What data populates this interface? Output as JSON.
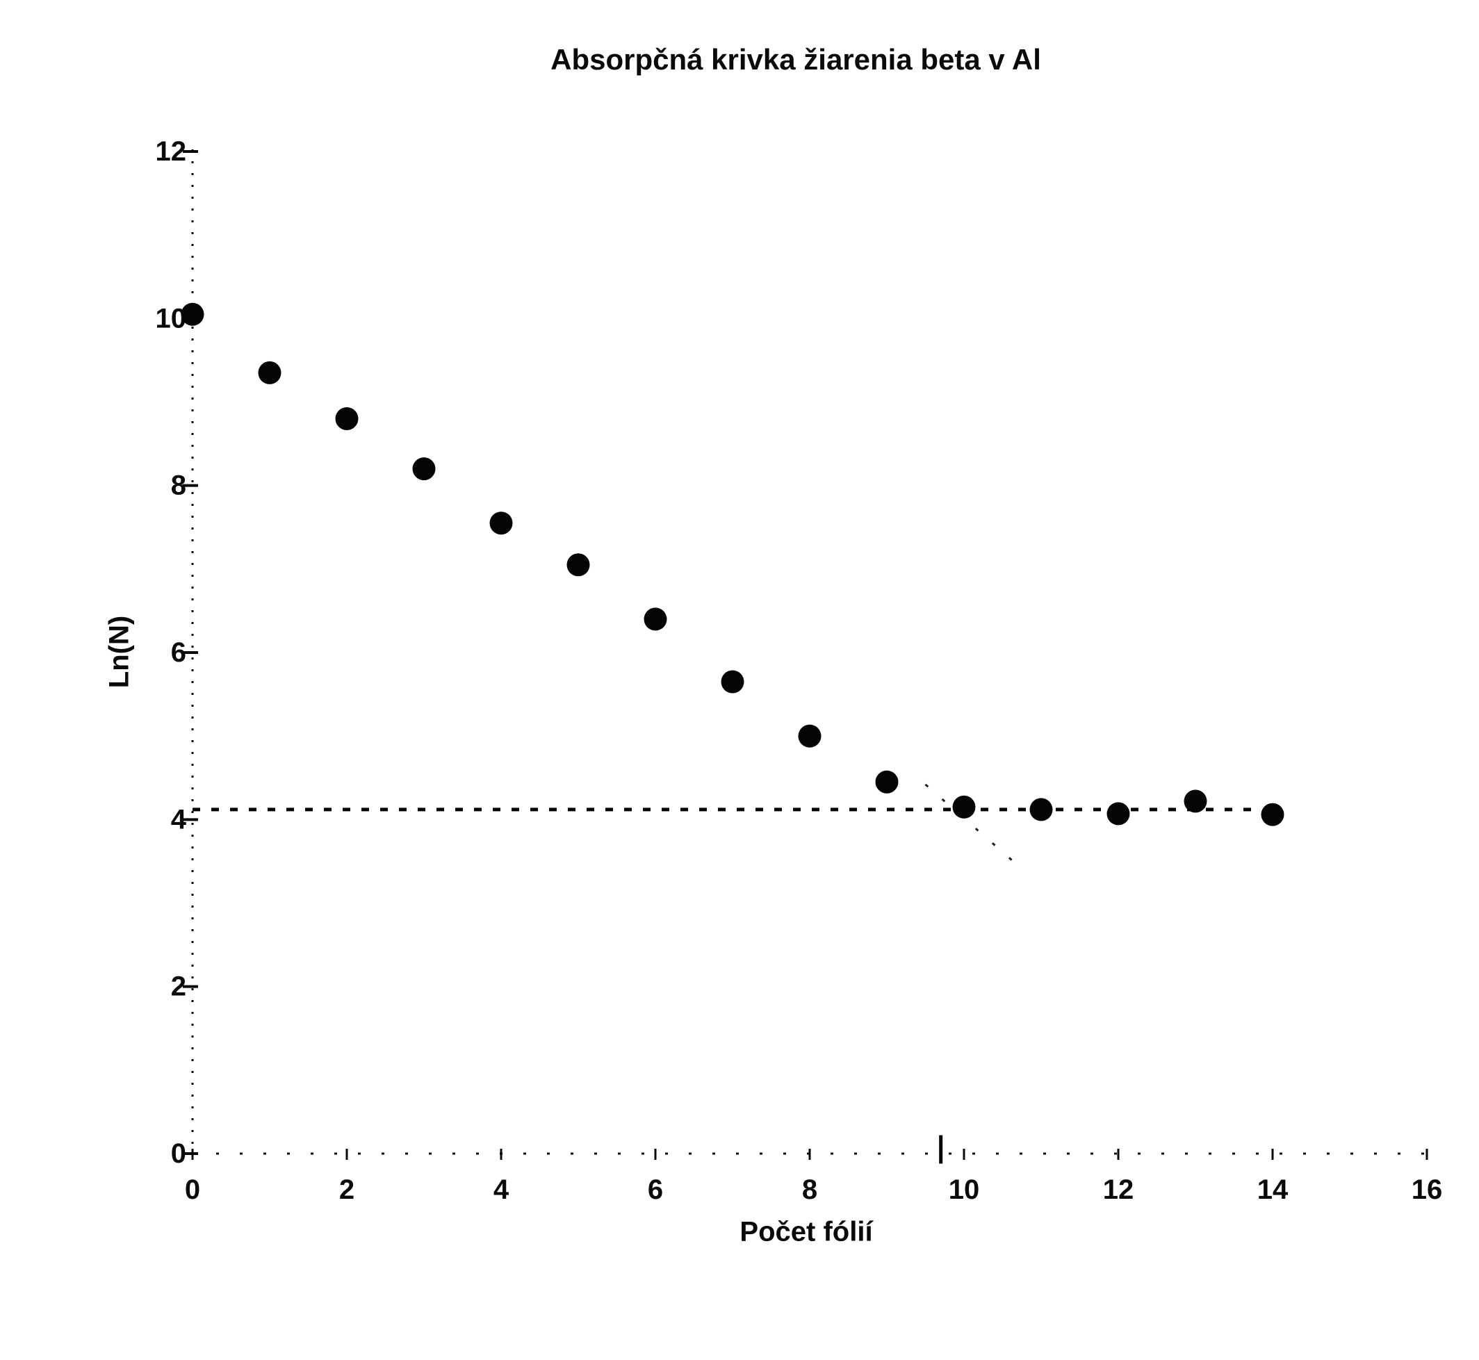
{
  "chart_data": {
    "type": "scatter",
    "title": "Absorpčná krivka žiarenia beta v Al",
    "xlabel": "Počet fólií",
    "ylabel": "Ln(N)",
    "xlim": [
      0,
      16
    ],
    "ylim": [
      0,
      12
    ],
    "x_ticks": [
      0,
      2,
      4,
      6,
      8,
      10,
      12,
      14,
      16
    ],
    "y_ticks": [
      0,
      2,
      4,
      6,
      8,
      10,
      12
    ],
    "grid": false,
    "legend": false,
    "marker": {
      "shape": "circle",
      "color": "#050505",
      "radius_px": 16.5
    },
    "x": [
      0,
      1,
      2,
      3,
      4,
      5,
      6,
      7,
      8,
      9,
      10,
      11,
      12,
      13,
      14
    ],
    "y": [
      10.05,
      9.35,
      8.8,
      8.2,
      7.55,
      7.05,
      6.4,
      5.65,
      5.0,
      4.45,
      4.15,
      4.12,
      4.07,
      4.22,
      4.06
    ],
    "background_level_line": {
      "y": 4.12,
      "x_start": 0,
      "x_end": 13.8,
      "style": "dashed",
      "color": "#050505"
    },
    "extrapolation_line": {
      "x1": 9.5,
      "y1": 4.42,
      "x2": 10.7,
      "y2": 3.45,
      "style": "sparse-dashed",
      "color": "#222222"
    },
    "range_marker": {
      "x": 9.7,
      "y_top": 0.22,
      "y_bottom": -0.12,
      "color": "#050505"
    }
  },
  "colors": {
    "background": "#ffffff",
    "foreground": "#0a0a0a"
  }
}
